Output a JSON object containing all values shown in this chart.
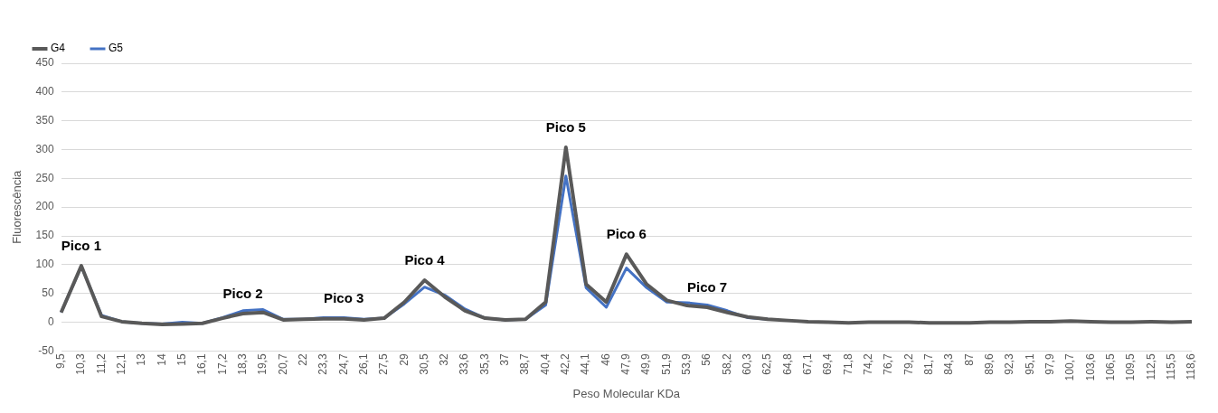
{
  "chart_data": {
    "type": "line",
    "xlabel": "Peso Molecular KDa",
    "ylabel": "Fluorescência",
    "categories": [
      "9,5",
      "10,3",
      "11,2",
      "12,1",
      "13",
      "14",
      "15",
      "16,1",
      "17,2",
      "18,3",
      "19,5",
      "20,7",
      "22",
      "23,3",
      "24,7",
      "26,1",
      "27,5",
      "29",
      "30,5",
      "32",
      "33,6",
      "35,3",
      "37",
      "38,7",
      "40,4",
      "42,2",
      "44,1",
      "46",
      "47,9",
      "49,9",
      "51,9",
      "53,9",
      "56",
      "58,2",
      "60,3",
      "62,5",
      "64,8",
      "67,1",
      "69,4",
      "71,8",
      "74,2",
      "76,7",
      "79,2",
      "81,7",
      "84,3",
      "87",
      "89,6",
      "92,3",
      "95,1",
      "97,9",
      "100,7",
      "103,6",
      "106,5",
      "109,5",
      "112,5",
      "115,5",
      "118,6"
    ],
    "series": [
      {
        "name": "G4",
        "color": "#595959",
        "values": [
          17,
          98,
          10,
          1,
          -2,
          -4,
          -3,
          -2,
          7,
          15,
          17,
          4,
          5,
          6,
          6,
          4,
          7,
          35,
          73,
          44,
          20,
          7,
          4,
          5,
          35,
          304,
          66,
          35,
          118,
          66,
          38,
          29,
          26,
          17,
          9,
          5,
          3,
          1,
          0,
          -1,
          0,
          0,
          0,
          -1,
          -1,
          -1,
          0,
          0,
          1,
          1,
          2,
          1,
          0,
          0,
          1,
          0,
          1
        ]
      },
      {
        "name": "G5",
        "color": "#4472c4",
        "values": [
          17,
          97,
          12,
          1,
          -2,
          -3,
          0,
          -2,
          8,
          20,
          22,
          5,
          5,
          8,
          8,
          5,
          7,
          32,
          61,
          47,
          23,
          7,
          4,
          5,
          30,
          254,
          60,
          26,
          94,
          60,
          35,
          34,
          30,
          20,
          8,
          5,
          null,
          null,
          null,
          null,
          null,
          null,
          null,
          null,
          null,
          null,
          null,
          null,
          null,
          null,
          null,
          null,
          null,
          null,
          null,
          null,
          null
        ]
      }
    ],
    "ylim": [
      -50,
      450
    ],
    "yticks": [
      -50,
      0,
      50,
      100,
      150,
      200,
      250,
      300,
      350,
      400,
      450
    ],
    "grid": "y",
    "legend": "top left",
    "marker": "none",
    "line_style": "solid",
    "annotations": [
      {
        "text": "Pico 1",
        "x": "10,3",
        "y": 98
      },
      {
        "text": "Pico 2",
        "x": "18,3",
        "y": 15
      },
      {
        "text": "Pico 3",
        "x": "24,7",
        "y": 6
      },
      {
        "text": "Pico 4",
        "x": "30,5",
        "y": 73
      },
      {
        "text": "Pico 5",
        "x": "42,2",
        "y": 304
      },
      {
        "text": "Pico 6",
        "x": "47,9",
        "y": 118
      },
      {
        "text": "Pico 7",
        "x": "56",
        "y": 26
      }
    ]
  }
}
